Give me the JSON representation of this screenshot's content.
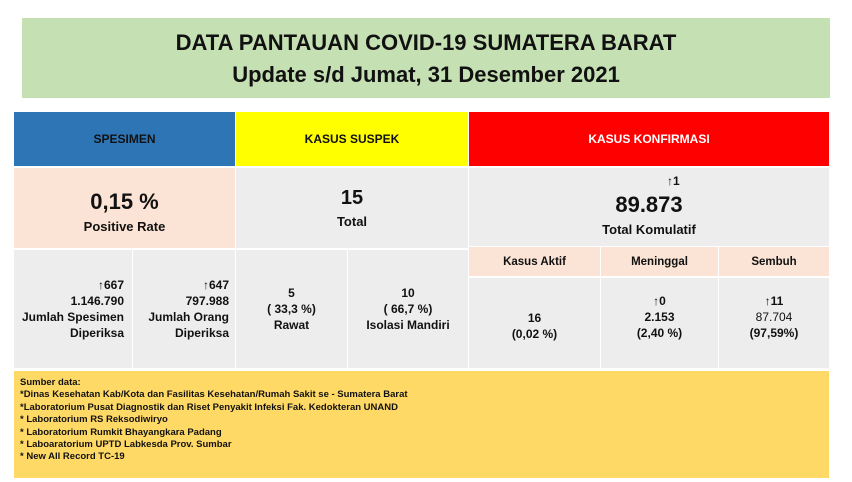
{
  "title": {
    "line1": "DATA PANTAUAN COVID-19 SUMATERA BARAT",
    "line2": "Update s/d Jumat, 31 Desember 2021"
  },
  "headers": {
    "spesimen": "SPESIMEN",
    "suspek": "KASUS SUSPEK",
    "konfirmasi": "KASUS KONFIRMASI"
  },
  "spesimen": {
    "positive_rate": "0,15 %",
    "positive_rate_label": "Positive Rate",
    "jumlah_spesimen": {
      "delta": "667",
      "value": "1.146.790",
      "label1": "Jumlah Spesimen",
      "label2": "Diperiksa"
    },
    "jumlah_orang": {
      "delta": "647",
      "value": "797.988",
      "label1": "Jumlah Orang",
      "label2": "Diperiksa"
    }
  },
  "suspek": {
    "total": "15",
    "total_label": "Total",
    "rawat": {
      "value": "5",
      "pct": "( 33,3 %)",
      "label": "Rawat"
    },
    "isolasi": {
      "value": "10",
      "pct": "( 66,7 %)",
      "label": "Isolasi Mandiri"
    }
  },
  "konfirmasi": {
    "delta": "1",
    "total": "89.873",
    "total_label": "Total Komulatif",
    "aktif": {
      "header": "Kasus Aktif",
      "value": "16",
      "pct": "(0,02 %)"
    },
    "meninggal": {
      "header": "Meninggal",
      "delta": "0",
      "value": "2.153",
      "pct": "(2,40 %)"
    },
    "sembuh": {
      "header": "Sembuh",
      "delta": "11",
      "value": "87.704",
      "pct": "(97,59%)"
    }
  },
  "sources": {
    "heading": "Sumber data:",
    "items": [
      "*Dinas Kesehatan Kab/Kota  dan Fasilitas Kesehatan/Rumah Sakit se - Sumatera Barat",
      "*Laboratorium  Pusat Diagnostik dan Riset  Penyakit Infeksi Fak. Kedokteran UNAND",
      "* Laboratorium RS Reksodiwiryo",
      "* Laboratorium Rumkit Bhayangkara Padang",
      "* Laboaratorium UPTD Labkesda Prov. Sumbar",
      "* New All Record TC-19"
    ]
  },
  "colors": {
    "title_bg": "#c5e0b3",
    "spesimen_header": "#2e75b6",
    "suspek_header": "#ffff00",
    "konfirmasi_header": "#ff0000",
    "sources_bg": "#ffd966"
  }
}
